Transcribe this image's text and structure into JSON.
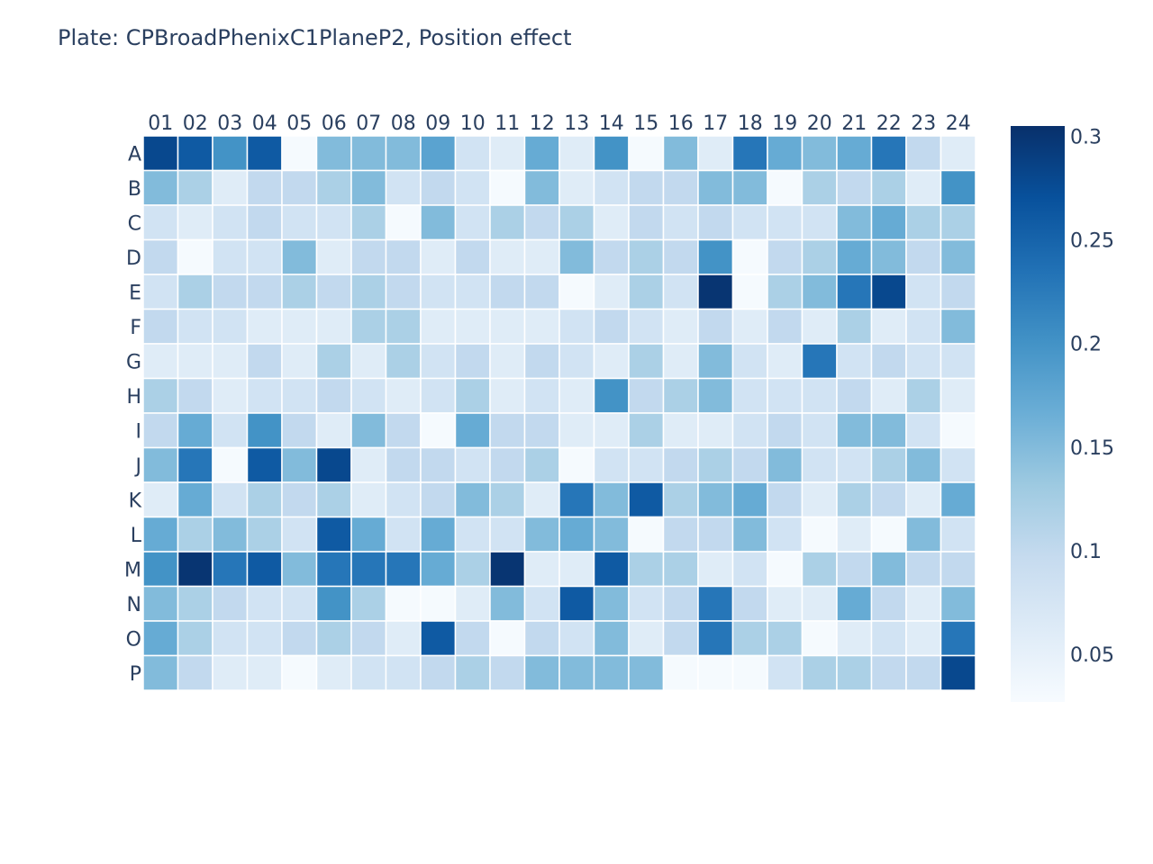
{
  "chart_data": {
    "type": "heatmap",
    "title": "Plate: CPBroadPhenixC1PlaneP2, Position effect",
    "columns": [
      "01",
      "02",
      "03",
      "04",
      "05",
      "06",
      "07",
      "08",
      "09",
      "10",
      "11",
      "12",
      "13",
      "14",
      "15",
      "16",
      "17",
      "18",
      "19",
      "20",
      "21",
      "22",
      "23",
      "24"
    ],
    "rows": [
      "A",
      "B",
      "C",
      "D",
      "E",
      "F",
      "G",
      "H",
      "I",
      "J",
      "K",
      "L",
      "M",
      "N",
      "O",
      "P"
    ],
    "colorscale": "Blues",
    "zmin": 0.027,
    "zmax": 0.305,
    "colorbar_ticks": [
      {
        "value": 0.3,
        "label": "0.3"
      },
      {
        "value": 0.25,
        "label": "0.25"
      },
      {
        "value": 0.2,
        "label": "0.2"
      },
      {
        "value": 0.15,
        "label": "0.15"
      },
      {
        "value": 0.1,
        "label": "0.1"
      },
      {
        "value": 0.05,
        "label": "0.05"
      }
    ],
    "values": [
      [
        0.28,
        0.26,
        0.2,
        0.26,
        0.03,
        0.15,
        0.15,
        0.15,
        0.18,
        0.08,
        0.06,
        0.17,
        0.06,
        0.2,
        0.03,
        0.15,
        0.06,
        0.23,
        0.17,
        0.15,
        0.17,
        0.23,
        0.1,
        0.06
      ],
      [
        0.15,
        0.12,
        0.06,
        0.1,
        0.1,
        0.12,
        0.15,
        0.08,
        0.1,
        0.08,
        0.03,
        0.15,
        0.06,
        0.08,
        0.1,
        0.1,
        0.15,
        0.15,
        0.03,
        0.12,
        0.1,
        0.12,
        0.06,
        0.2
      ],
      [
        0.08,
        0.06,
        0.08,
        0.1,
        0.08,
        0.08,
        0.12,
        0.03,
        0.15,
        0.08,
        0.12,
        0.1,
        0.12,
        0.06,
        0.1,
        0.08,
        0.1,
        0.08,
        0.08,
        0.08,
        0.15,
        0.17,
        0.12,
        0.12
      ],
      [
        0.1,
        0.03,
        0.08,
        0.08,
        0.15,
        0.06,
        0.1,
        0.1,
        0.06,
        0.1,
        0.06,
        0.06,
        0.15,
        0.1,
        0.12,
        0.1,
        0.2,
        0.03,
        0.1,
        0.12,
        0.17,
        0.15,
        0.1,
        0.15
      ],
      [
        0.08,
        0.12,
        0.1,
        0.1,
        0.12,
        0.1,
        0.12,
        0.1,
        0.08,
        0.08,
        0.1,
        0.1,
        0.03,
        0.06,
        0.12,
        0.08,
        0.3,
        0.03,
        0.12,
        0.15,
        0.23,
        0.28,
        0.08,
        0.1
      ],
      [
        0.1,
        0.08,
        0.08,
        0.06,
        0.06,
        0.06,
        0.12,
        0.12,
        0.06,
        0.06,
        0.06,
        0.06,
        0.08,
        0.1,
        0.08,
        0.06,
        0.1,
        0.06,
        0.1,
        0.06,
        0.12,
        0.06,
        0.08,
        0.15
      ],
      [
        0.06,
        0.06,
        0.06,
        0.1,
        0.06,
        0.12,
        0.06,
        0.12,
        0.08,
        0.1,
        0.06,
        0.1,
        0.08,
        0.06,
        0.12,
        0.06,
        0.15,
        0.08,
        0.06,
        0.23,
        0.08,
        0.1,
        0.08,
        0.08
      ],
      [
        0.12,
        0.1,
        0.06,
        0.08,
        0.08,
        0.1,
        0.08,
        0.06,
        0.08,
        0.12,
        0.06,
        0.08,
        0.06,
        0.2,
        0.1,
        0.12,
        0.15,
        0.08,
        0.08,
        0.08,
        0.1,
        0.06,
        0.12,
        0.06
      ],
      [
        0.1,
        0.17,
        0.08,
        0.2,
        0.1,
        0.06,
        0.15,
        0.1,
        0.03,
        0.17,
        0.1,
        0.1,
        0.06,
        0.06,
        0.12,
        0.06,
        0.06,
        0.08,
        0.1,
        0.08,
        0.15,
        0.15,
        0.08,
        0.03
      ],
      [
        0.15,
        0.23,
        0.03,
        0.26,
        0.15,
        0.28,
        0.06,
        0.1,
        0.1,
        0.08,
        0.1,
        0.12,
        0.03,
        0.08,
        0.08,
        0.1,
        0.12,
        0.1,
        0.15,
        0.08,
        0.08,
        0.12,
        0.15,
        0.08
      ],
      [
        0.06,
        0.17,
        0.08,
        0.12,
        0.1,
        0.12,
        0.06,
        0.08,
        0.1,
        0.15,
        0.12,
        0.06,
        0.23,
        0.15,
        0.26,
        0.12,
        0.15,
        0.17,
        0.1,
        0.06,
        0.12,
        0.1,
        0.06,
        0.17
      ],
      [
        0.17,
        0.12,
        0.15,
        0.12,
        0.08,
        0.26,
        0.17,
        0.08,
        0.17,
        0.08,
        0.08,
        0.15,
        0.17,
        0.15,
        0.03,
        0.1,
        0.1,
        0.15,
        0.08,
        0.03,
        0.06,
        0.03,
        0.15,
        0.08
      ],
      [
        0.2,
        0.3,
        0.23,
        0.26,
        0.15,
        0.23,
        0.23,
        0.23,
        0.17,
        0.12,
        0.3,
        0.06,
        0.06,
        0.26,
        0.12,
        0.12,
        0.06,
        0.08,
        0.03,
        0.12,
        0.1,
        0.15,
        0.1,
        0.1
      ],
      [
        0.15,
        0.12,
        0.1,
        0.08,
        0.08,
        0.2,
        0.12,
        0.03,
        0.03,
        0.06,
        0.15,
        0.08,
        0.26,
        0.15,
        0.08,
        0.1,
        0.23,
        0.1,
        0.06,
        0.06,
        0.17,
        0.1,
        0.06,
        0.15
      ],
      [
        0.17,
        0.12,
        0.08,
        0.08,
        0.1,
        0.12,
        0.1,
        0.06,
        0.26,
        0.1,
        0.03,
        0.1,
        0.08,
        0.15,
        0.06,
        0.1,
        0.23,
        0.12,
        0.12,
        0.03,
        0.06,
        0.08,
        0.06,
        0.23
      ],
      [
        0.15,
        0.1,
        0.06,
        0.06,
        0.03,
        0.06,
        0.08,
        0.08,
        0.1,
        0.12,
        0.1,
        0.15,
        0.15,
        0.15,
        0.15,
        0.03,
        0.03,
        0.03,
        0.08,
        0.12,
        0.12,
        0.1,
        0.1,
        0.28
      ]
    ]
  }
}
